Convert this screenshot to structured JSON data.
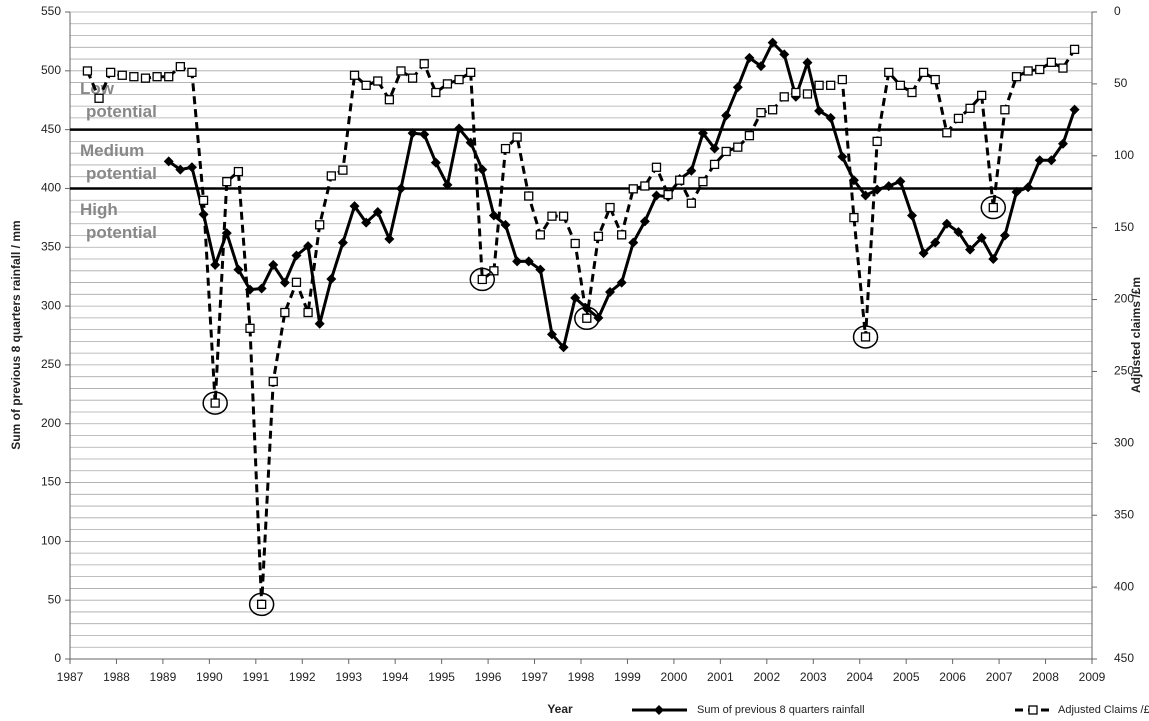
{
  "chart_data": {
    "type": "line",
    "x_label": "Year",
    "y_label": "Sum of previous 8 quarters rainfall / mm",
    "y2_label": "Adjusted claims /£m",
    "xlim": [
      1987,
      2009
    ],
    "xticks": [
      1987,
      1988,
      1989,
      1990,
      1991,
      1992,
      1993,
      1994,
      1995,
      1996,
      1997,
      1998,
      1999,
      2000,
      2001,
      2002,
      2003,
      2004,
      2005,
      2006,
      2007,
      2008,
      2009
    ],
    "ylim": [
      0,
      550
    ],
    "yticks": [
      0,
      50,
      100,
      150,
      200,
      250,
      300,
      350,
      400,
      450,
      500,
      550
    ],
    "y2lim": [
      450,
      0
    ],
    "y2ticks": [
      0,
      50,
      100,
      150,
      200,
      250,
      300,
      350,
      400,
      450
    ],
    "grid": true,
    "minor_grid_step": 10,
    "thresholds": [
      450,
      400
    ],
    "zones": [
      [
        "Low",
        "potential"
      ],
      [
        "Medium",
        "potential"
      ],
      [
        "High",
        "potential"
      ]
    ],
    "x": [
      1987.375,
      1987.625,
      1987.875,
      1988.125,
      1988.375,
      1988.625,
      1988.875,
      1989.125,
      1989.375,
      1989.625,
      1989.875,
      1990.125,
      1990.375,
      1990.625,
      1990.875,
      1991.125,
      1991.375,
      1991.625,
      1991.875,
      1992.125,
      1992.375,
      1992.625,
      1992.875,
      1993.125,
      1993.375,
      1993.625,
      1993.875,
      1994.125,
      1994.375,
      1994.625,
      1994.875,
      1995.125,
      1995.375,
      1995.625,
      1995.875,
      1996.125,
      1996.375,
      1996.625,
      1996.875,
      1997.125,
      1997.375,
      1997.625,
      1997.875,
      1998.125,
      1998.375,
      1998.625,
      1998.875,
      1999.125,
      1999.375,
      1999.625,
      1999.875,
      2000.125,
      2000.375,
      2000.625,
      2000.875,
      2001.125,
      2001.375,
      2001.625,
      2001.875,
      2002.125,
      2002.375,
      2002.625,
      2002.875,
      2003.125,
      2003.375,
      2003.625,
      2003.875,
      2004.125,
      2004.375,
      2004.625,
      2004.875,
      2005.125,
      2005.375,
      2005.625,
      2005.875,
      2006.125,
      2006.375,
      2006.625,
      2006.875,
      2007.125,
      2007.375,
      2007.625,
      2007.875,
      2008.125,
      2008.375,
      2008.625
    ],
    "series": [
      {
        "name": "Sum of previous 8 quarters rainfall",
        "color": "#000000",
        "marker": "diamond",
        "dashed": false,
        "values": [
          null,
          null,
          null,
          null,
          null,
          null,
          null,
          423,
          416,
          418,
          378,
          335,
          362,
          331,
          314,
          315,
          335,
          320,
          343,
          351,
          285,
          323,
          354,
          385,
          371,
          380,
          357,
          400,
          447,
          446,
          422,
          403,
          451,
          439,
          416,
          377,
          369,
          338,
          338,
          331,
          276,
          265,
          307,
          298,
          290,
          312,
          320,
          354,
          372,
          394,
          393,
          408,
          415,
          447,
          434,
          462,
          486,
          511,
          504,
          524,
          514,
          478,
          507,
          466,
          460,
          427,
          407,
          394,
          399,
          402,
          406,
          377,
          345,
          354,
          370,
          363,
          348,
          358,
          340,
          360,
          397,
          401,
          424,
          424,
          438,
          467
        ]
      },
      {
        "name": "Adjusted Claims /£m",
        "color": "#000000",
        "marker": "square",
        "dashed": true,
        "axis": "y2",
        "highlight": [
          11,
          15,
          34,
          43,
          67,
          78
        ],
        "values": [
          41,
          60,
          42,
          44,
          45,
          46,
          45,
          45,
          38,
          42,
          131,
          272,
          118,
          111,
          220,
          412,
          257,
          209,
          188,
          209,
          148,
          114,
          110,
          44,
          51,
          48,
          61,
          41,
          46,
          36,
          56,
          50,
          47,
          42,
          186,
          180,
          95,
          87,
          128,
          155,
          142,
          142,
          161,
          213,
          156,
          136,
          155,
          123,
          121,
          108,
          127,
          117,
          133,
          118,
          106,
          97,
          94,
          86,
          70,
          68,
          59,
          56,
          57,
          51,
          51,
          47,
          143,
          226,
          90,
          42,
          51,
          56,
          42,
          47,
          84,
          74,
          67,
          58,
          136,
          68,
          45,
          41,
          40,
          35,
          39,
          26
        ]
      }
    ]
  }
}
